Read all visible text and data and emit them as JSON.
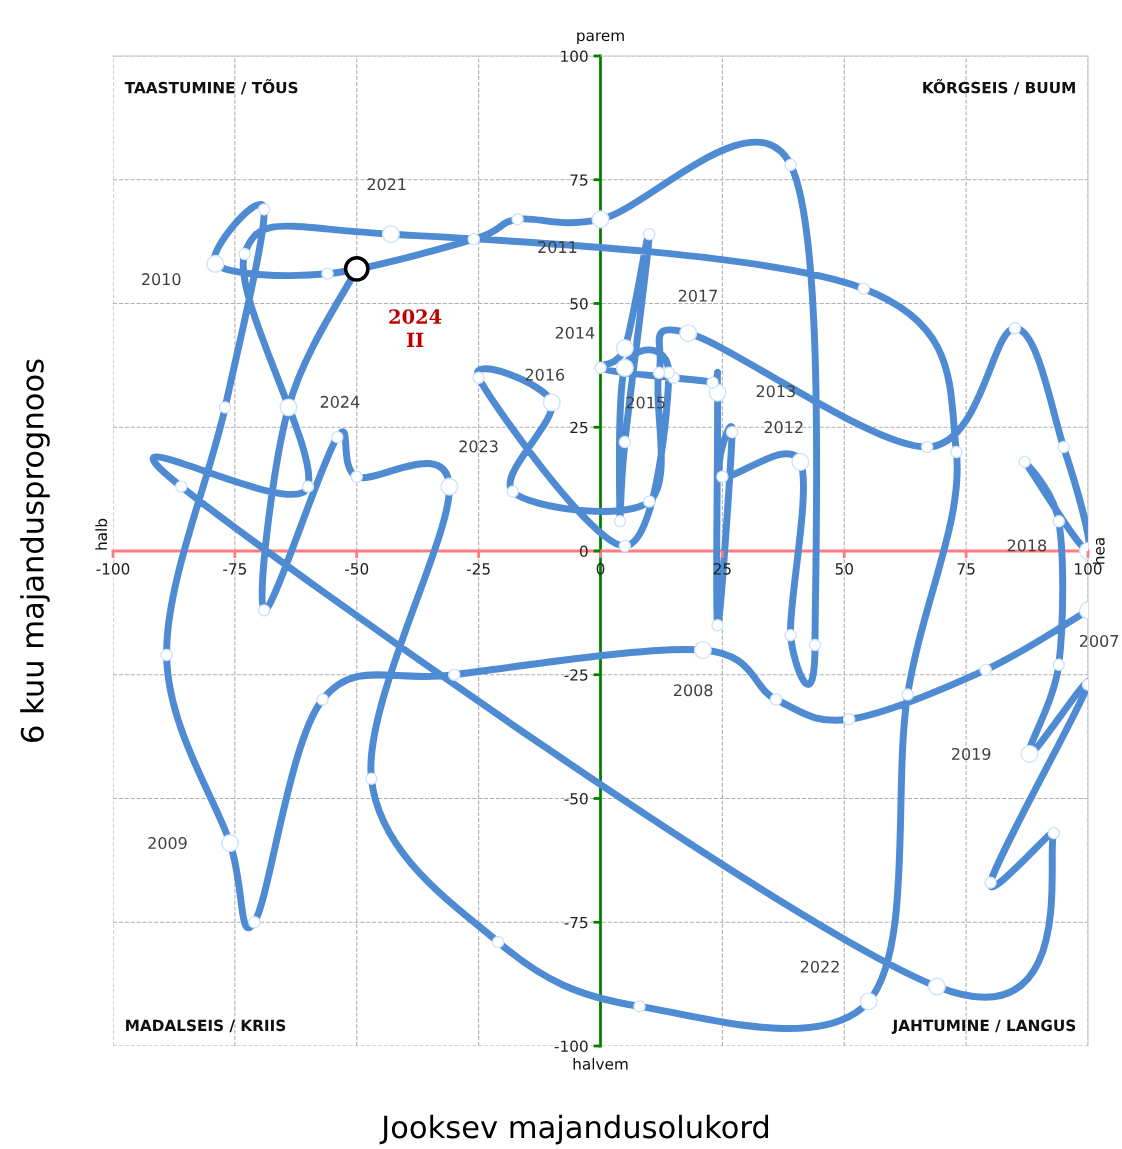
{
  "chart_data": {
    "type": "line",
    "xlabel": "Jooksev majandusolukord",
    "ylabel": "6 kuu majandusprognoos",
    "xlim": [
      -100,
      100
    ],
    "ylim": [
      -100,
      100
    ],
    "xticks": [
      -100,
      -75,
      -50,
      -25,
      0,
      25,
      50,
      75,
      100
    ],
    "yticks": [
      -100,
      -75,
      -50,
      -25,
      0,
      25,
      50,
      75,
      100
    ],
    "grid": true,
    "legend": false,
    "marker": "circle",
    "line_style": "solid",
    "series": [
      {
        "type": "line",
        "color": "#4f8bd3",
        "x": [
          100,
          79,
          51,
          36,
          21,
          -30,
          -57,
          -71,
          -76,
          -89,
          -77,
          -69,
          -79,
          -56,
          -26,
          -17,
          0,
          39,
          44,
          39,
          41,
          25,
          27,
          24,
          24,
          23,
          15,
          0,
          5,
          10,
          5,
          4,
          5,
          14,
          5,
          -25,
          -10,
          -18,
          10,
          12,
          18,
          67,
          85,
          95,
          100,
          87,
          94,
          94,
          88,
          100,
          80,
          93,
          69,
          -86,
          -60,
          -73,
          -43,
          54,
          73,
          63,
          55,
          8,
          -21,
          -47,
          -31,
          -50,
          -54,
          -69,
          -64,
          -50
        ],
        "values": [
          -12,
          -24,
          -34,
          -30,
          -20,
          -25,
          -30,
          -75,
          -59,
          -21,
          29,
          69,
          58,
          56,
          63,
          67,
          67,
          78,
          -19,
          -17,
          18,
          15,
          24,
          -15,
          32,
          34,
          35,
          37,
          41,
          64,
          22,
          6,
          37,
          36,
          1,
          35,
          30,
          12,
          10,
          36,
          44,
          21,
          45,
          21,
          0,
          18,
          6,
          -23,
          -41,
          -27,
          -67,
          -57,
          -88,
          13,
          13,
          60,
          64,
          53,
          20,
          -29,
          -91,
          -92,
          -79,
          -46,
          13,
          15,
          23,
          -12,
          29,
          57
        ]
      },
      {
        "type": "scatter",
        "name": "2024\nII",
        "color": "#000000",
        "x": [
          -50
        ],
        "values": [
          57
        ]
      }
    ],
    "annotations": [
      {
        "text": "2007",
        "x": 100,
        "y": -12
      },
      {
        "text": "2008",
        "x": 21,
        "y": -20
      },
      {
        "text": "2009",
        "x": -76,
        "y": -59
      },
      {
        "text": "2010",
        "x": -79,
        "y": 58
      },
      {
        "text": "2011",
        "x": 0,
        "y": 67
      },
      {
        "text": "2012",
        "x": 41,
        "y": 18
      },
      {
        "text": "2013",
        "x": 24,
        "y": 32
      },
      {
        "text": "2014",
        "x": 5,
        "y": 41
      },
      {
        "text": "2015",
        "x": 5,
        "y": 37
      },
      {
        "text": "2016",
        "x": -10,
        "y": 30
      },
      {
        "text": "2017",
        "x": 18,
        "y": 44
      },
      {
        "text": "2018",
        "x": 100,
        "y": 0
      },
      {
        "text": "2019",
        "x": 88,
        "y": -41
      },
      {
        "text": "2021",
        "x": -43,
        "y": 64
      },
      {
        "text": "2022",
        "x": 55,
        "y": -91
      },
      {
        "text": "2023",
        "x": -31,
        "y": 13
      },
      {
        "text": "2024",
        "x": -64,
        "y": 29
      },
      "TAASTUMINE / TÕUS",
      "KÕRGSEIS / BUUM",
      "MADALSEIS / KRIIS",
      "JAHTUMINE / LANGUS",
      "parem",
      "halvem",
      "halb",
      "hea"
    ]
  }
}
